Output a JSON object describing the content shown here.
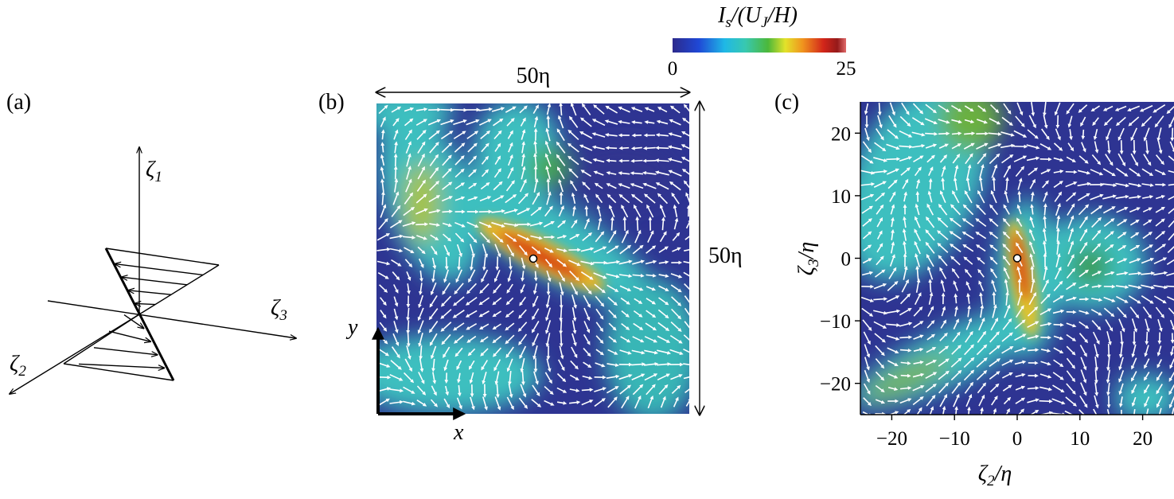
{
  "colorbar": {
    "label": [
      "I",
      "s",
      "/(U",
      "J",
      "/H)"
    ],
    "ticks": [
      0,
      25
    ]
  },
  "panels": [
    {
      "label": "(a)",
      "axes": [
        [
          "ζ",
          "1"
        ],
        [
          "ζ",
          "2"
        ],
        [
          "ζ",
          "3"
        ]
      ]
    },
    {
      "label": "(b)",
      "width_label": "50η",
      "height_label": "50η",
      "x_label": "x",
      "y_label": "y"
    },
    {
      "label": "(c)",
      "type": "scatter",
      "x_label": [
        "ζ",
        "2",
        "/η"
      ],
      "y_label": [
        "ζ",
        "3",
        "/η"
      ],
      "xlim": [
        -25,
        25
      ],
      "ylim": [
        -25,
        25
      ],
      "xticks": [
        {
          "value": -20,
          "label": "−20"
        },
        {
          "value": -10,
          "label": "−10"
        },
        0,
        10,
        20
      ],
      "yticks": [
        {
          "value": -20,
          "label": "−20"
        },
        {
          "value": -10,
          "label": "−10"
        },
        0,
        10,
        20
      ],
      "x": [
        0
      ],
      "y": [
        0
      ]
    }
  ]
}
